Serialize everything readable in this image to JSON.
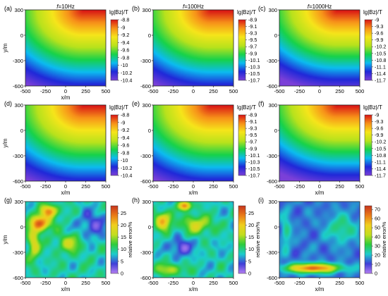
{
  "chart_data": [
    {
      "type": "heatmap",
      "panel": "(a)",
      "title": "f=10Hz",
      "xlabel": "x/m",
      "ylabel": "y/m",
      "xlim": [
        -500,
        500
      ],
      "ylim": [
        -600,
        300
      ],
      "x_ticks": [
        "-500",
        "-250",
        "0",
        "250",
        "500"
      ],
      "y_ticks": [
        "300",
        "0",
        "-300",
        "-600"
      ],
      "colorbar": {
        "label": "lg|Bz|/T",
        "min": -10.4,
        "max": -8.8,
        "ticks": [
          "-8.8",
          "-9",
          "-9.2",
          "-9.4",
          "-9.6",
          "-9.8",
          "-10",
          "-10.2",
          "-10.4"
        ]
      },
      "field": "log-field"
    },
    {
      "type": "heatmap",
      "panel": "(b)",
      "title": "f=100Hz",
      "xlabel": "",
      "ylabel": "",
      "xlim": [
        -500,
        500
      ],
      "ylim": [
        -600,
        300
      ],
      "x_ticks": [
        "-500",
        "-250",
        "0",
        "250",
        "500"
      ],
      "y_ticks": [
        "300",
        "0",
        "-300",
        "-600"
      ],
      "colorbar": {
        "label": "lg|Bz|/T",
        "min": -10.7,
        "max": -8.9,
        "ticks": [
          "-8.9",
          "-9.1",
          "-9.3",
          "-9.5",
          "-9.7",
          "-9.9",
          "-10.1",
          "-10.3",
          "-10.5",
          "-10.7"
        ]
      },
      "field": "log-field"
    },
    {
      "type": "heatmap",
      "panel": "(c)",
      "title": "f=1000Hz",
      "xlabel": "",
      "ylabel": "",
      "xlim": [
        -500,
        500
      ],
      "ylim": [
        -600,
        300
      ],
      "x_ticks": [
        "-500",
        "-250",
        "0",
        "250",
        "500"
      ],
      "y_ticks": [
        "300",
        "0",
        "-300",
        "-600"
      ],
      "colorbar": {
        "label": "lg|Bz|/T",
        "min": -11.7,
        "max": -9,
        "ticks": [
          "-9",
          "-9.3",
          "-9.6",
          "-9.9",
          "-10.2",
          "-10.5",
          "-10.8",
          "-11.1",
          "-11.4",
          "-11.7"
        ]
      },
      "field": "log-field"
    },
    {
      "type": "heatmap",
      "panel": "(d)",
      "title": "",
      "xlabel": "x/m",
      "ylabel": "y/m",
      "xlim": [
        -500,
        500
      ],
      "ylim": [
        -600,
        300
      ],
      "x_ticks": [
        "-500",
        "-250",
        "0",
        "250",
        "500"
      ],
      "y_ticks": [
        "300",
        "0",
        "-300",
        "-600"
      ],
      "colorbar": {
        "label": "lg|Bz|/T",
        "min": -10.4,
        "max": -8.8,
        "ticks": [
          "-8.8",
          "-9",
          "-9.2",
          "-9.4",
          "-9.6",
          "-9.8",
          "-10",
          "-10.2",
          "-10.4"
        ]
      },
      "field": "log-field"
    },
    {
      "type": "heatmap",
      "panel": "(e)",
      "title": "",
      "xlabel": "x/m",
      "ylabel": "",
      "xlim": [
        -500,
        500
      ],
      "ylim": [
        -600,
        300
      ],
      "x_ticks": [
        "-500",
        "-250",
        "0",
        "250",
        "500"
      ],
      "y_ticks": [
        "300",
        "0",
        "-300",
        "-600"
      ],
      "colorbar": {
        "label": "lg|Bz|/T",
        "min": -10.7,
        "max": -8.9,
        "ticks": [
          "-8.9",
          "-9.1",
          "-9.3",
          "-9.5",
          "-9.7",
          "-9.9",
          "-10.1",
          "-10.3",
          "-10.5",
          "-10.7"
        ]
      },
      "field": "log-field"
    },
    {
      "type": "heatmap",
      "panel": "(f)",
      "title": "",
      "xlabel": "x/m",
      "ylabel": "",
      "xlim": [
        -500,
        500
      ],
      "ylim": [
        -600,
        300
      ],
      "x_ticks": [
        "-500",
        "-250",
        "0",
        "250",
        "500"
      ],
      "y_ticks": [
        "300",
        "0",
        "-300",
        "-600"
      ],
      "colorbar": {
        "label": "lg|Bz|/T",
        "min": -11.7,
        "max": -9,
        "ticks": [
          "-9",
          "-9.3",
          "-9.6",
          "-9.9",
          "-10.2",
          "-10.5",
          "-10.8",
          "-11.1",
          "-11.4",
          "-11.7"
        ]
      },
      "field": "log-field"
    },
    {
      "type": "heatmap",
      "panel": "(g)",
      "title": "",
      "xlabel": "x/m",
      "ylabel": "y/m",
      "xlim": [
        -500,
        500
      ],
      "ylim": [
        -600,
        300
      ],
      "x_ticks": [
        "-500",
        "-250",
        "0",
        "250",
        "500"
      ],
      "y_ticks": [
        "300",
        "0",
        "-300",
        "-600"
      ],
      "colorbar": {
        "label": "relative error/%",
        "min": 0,
        "max": 28,
        "ticks": [
          "25",
          "20",
          "15",
          "10",
          "5",
          "0"
        ]
      },
      "field": "error-g"
    },
    {
      "type": "heatmap",
      "panel": "(h)",
      "title": "",
      "xlabel": "x/m",
      "ylabel": "",
      "xlim": [
        -500,
        500
      ],
      "ylim": [
        -600,
        300
      ],
      "x_ticks": [
        "-500",
        "-250",
        "0",
        "250",
        "500"
      ],
      "y_ticks": [
        "300",
        "0",
        "-300",
        "-600"
      ],
      "colorbar": {
        "label": "relative error/%",
        "min": 0,
        "max": 28,
        "ticks": [
          "25",
          "20",
          "15",
          "10",
          "5",
          "0"
        ]
      },
      "field": "error-h"
    },
    {
      "type": "heatmap",
      "panel": "(i)",
      "title": "",
      "xlabel": "x/m",
      "ylabel": "",
      "xlim": [
        -500,
        500
      ],
      "ylim": [
        -600,
        300
      ],
      "x_ticks": [
        "-500",
        "-250",
        "0",
        "250",
        "500"
      ],
      "y_ticks": [
        "300",
        "0",
        "-300",
        "-600"
      ],
      "colorbar": {
        "label": "relative error/%",
        "min": 0,
        "max": 74,
        "ticks": [
          "70",
          "60",
          "50",
          "40",
          "30",
          "20",
          "10",
          "0"
        ]
      },
      "field": "error-i"
    }
  ],
  "colors": {
    "colormap": [
      "#7b40d8",
      "#2028d8",
      "#0cbcf0",
      "#17d24a",
      "#b8e21c",
      "#f6e51a",
      "#f79219",
      "#d91515"
    ],
    "error_colormap": [
      "#b57ef2",
      "#3f3fd8",
      "#1ccccc",
      "#2dcc3c",
      "#c2de1f",
      "#f0cf1e",
      "#ea7b17",
      "#c6341e"
    ]
  }
}
